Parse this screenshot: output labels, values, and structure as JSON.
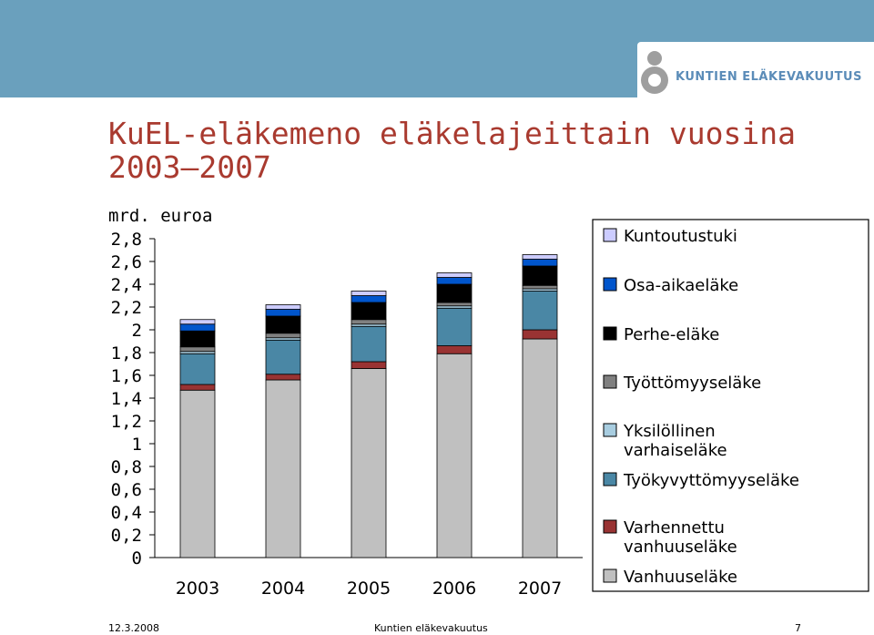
{
  "header": {
    "logo_text": "KUNTIEN ELÄKEVAKUUTUS"
  },
  "title": "KuEL-eläkemeno eläkelajeittain vuosina 2003—2007",
  "unit_label": "mrd. euroa",
  "colors": {
    "topbar": "#6aa0bd",
    "title": "#a93a2f"
  },
  "chart_data": {
    "type": "bar",
    "stacked": true,
    "categories": [
      "2003",
      "2004",
      "2005",
      "2006",
      "2007"
    ],
    "y_ticks": [
      "0",
      "0,2",
      "0,4",
      "0,6",
      "0,8",
      "1",
      "1,2",
      "1,4",
      "1,6",
      "1,8",
      "2",
      "2,2",
      "2,4",
      "2,6",
      "2,8"
    ],
    "ylim": [
      0,
      2.8
    ],
    "legend_position": "right",
    "series": [
      {
        "name": "Vanhuuseläke",
        "color": "#c0c0c0",
        "values": [
          1.47,
          1.56,
          1.66,
          1.79,
          1.92
        ]
      },
      {
        "name": "Varhennettu vanhuuseläke",
        "color": "#993333",
        "values": [
          0.05,
          0.05,
          0.06,
          0.07,
          0.08
        ]
      },
      {
        "name": "Työkyvyttömyyseläke",
        "color": "#4a87a5",
        "values": [
          0.27,
          0.3,
          0.31,
          0.33,
          0.34
        ]
      },
      {
        "name": "Yksilöllinen varhaiseläke",
        "color": "#a8cde0",
        "values": [
          0.02,
          0.02,
          0.02,
          0.02,
          0.02
        ]
      },
      {
        "name": "Työttömyyseläke",
        "color": "#808080",
        "values": [
          0.04,
          0.04,
          0.04,
          0.03,
          0.03
        ]
      },
      {
        "name": "Perhe-eläke",
        "color": "#000000",
        "values": [
          0.14,
          0.15,
          0.15,
          0.16,
          0.17
        ]
      },
      {
        "name": "Osa-aikaeläke",
        "color": "#0055cc",
        "values": [
          0.06,
          0.06,
          0.06,
          0.06,
          0.06
        ]
      },
      {
        "name": "Kuntoutustuki",
        "color": "#ccccff",
        "values": [
          0.04,
          0.04,
          0.04,
          0.04,
          0.04
        ]
      }
    ]
  },
  "footer": {
    "date": "12.3.2008",
    "company": "Kuntien eläkevakuutus",
    "page": "7"
  }
}
